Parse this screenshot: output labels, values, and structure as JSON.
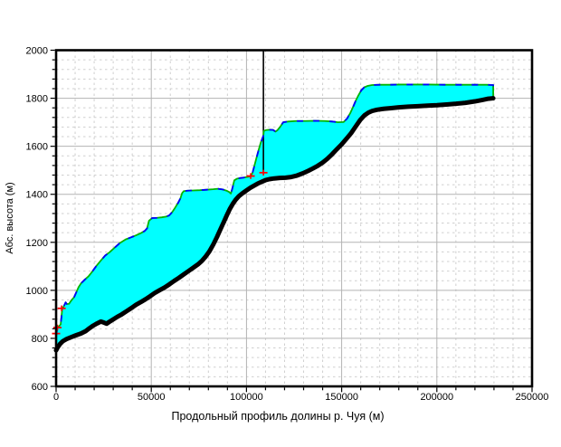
{
  "figure": {
    "background": "#ffffff"
  },
  "chart_data": {
    "type": "area",
    "title": "",
    "xlabel": "Продольный профиль долины р. Чуя (м)",
    "ylabel": "Абс. высота (м)",
    "xlim": [
      0,
      250000
    ],
    "ylim": [
      600,
      2000
    ],
    "x_ticks": [
      0,
      50000,
      100000,
      150000,
      200000,
      250000
    ],
    "y_ticks": [
      600,
      800,
      1000,
      1200,
      1400,
      1600,
      1800,
      2000
    ],
    "x_minor_step": 10000,
    "y_minor_step": 40,
    "grid": {
      "major_style": "solid",
      "minor_style": "dashed",
      "legend": "none"
    },
    "colors": {
      "fill": "#00ffff",
      "lower_bold_line": "#000000",
      "upper_line_green": "#00b400",
      "upper_line_blue_dashed": "#0000ff",
      "markers": "#ff0000",
      "grid_major": "#b3b3b3",
      "grid_minor": "#cfcfcf",
      "frame": "#000000"
    },
    "series": [
      {
        "name": "lower-bold-profile",
        "style": "thick-black-solid",
        "points": [
          [
            0,
            750
          ],
          [
            800,
            762
          ],
          [
            2000,
            776
          ],
          [
            3500,
            788
          ],
          [
            5500,
            797
          ],
          [
            8000,
            805
          ],
          [
            10500,
            813
          ],
          [
            13000,
            820
          ],
          [
            15500,
            830
          ],
          [
            17500,
            842
          ],
          [
            19500,
            853
          ],
          [
            21500,
            862
          ],
          [
            23500,
            870
          ],
          [
            25000,
            866
          ],
          [
            26500,
            861
          ],
          [
            28000,
            869
          ],
          [
            30000,
            879
          ],
          [
            32000,
            889
          ],
          [
            34500,
            900
          ],
          [
            37000,
            913
          ],
          [
            39500,
            926
          ],
          [
            42000,
            940
          ],
          [
            44500,
            951
          ],
          [
            47000,
            963
          ],
          [
            49500,
            976
          ],
          [
            52000,
            990
          ],
          [
            54500,
            1001
          ],
          [
            57000,
            1012
          ],
          [
            59500,
            1025
          ],
          [
            62000,
            1039
          ],
          [
            64500,
            1052
          ],
          [
            67000,
            1066
          ],
          [
            69500,
            1080
          ],
          [
            72000,
            1094
          ],
          [
            74500,
            1108
          ],
          [
            76500,
            1122
          ],
          [
            78500,
            1140
          ],
          [
            80500,
            1162
          ],
          [
            82500,
            1190
          ],
          [
            84500,
            1222
          ],
          [
            86200,
            1252
          ],
          [
            88000,
            1283
          ],
          [
            89700,
            1313
          ],
          [
            91200,
            1338
          ],
          [
            92800,
            1360
          ],
          [
            94300,
            1377
          ],
          [
            96000,
            1392
          ],
          [
            98000,
            1405
          ],
          [
            100000,
            1416
          ],
          [
            102000,
            1427
          ],
          [
            104000,
            1436
          ],
          [
            106000,
            1445
          ],
          [
            108000,
            1452
          ],
          [
            110000,
            1459
          ],
          [
            112000,
            1463
          ],
          [
            114500,
            1466
          ],
          [
            117500,
            1468
          ],
          [
            120500,
            1469
          ],
          [
            123500,
            1472
          ],
          [
            126500,
            1478
          ],
          [
            129500,
            1487
          ],
          [
            132500,
            1498
          ],
          [
            135000,
            1508
          ],
          [
            137500,
            1519
          ],
          [
            140000,
            1532
          ],
          [
            142500,
            1548
          ],
          [
            145000,
            1567
          ],
          [
            147500,
            1588
          ],
          [
            150000,
            1608
          ],
          [
            152500,
            1631
          ],
          [
            155000,
            1655
          ],
          [
            157500,
            1684
          ],
          [
            159800,
            1710
          ],
          [
            162000,
            1729
          ],
          [
            164000,
            1740
          ],
          [
            166000,
            1747
          ],
          [
            168500,
            1752
          ],
          [
            172000,
            1756
          ],
          [
            176000,
            1759
          ],
          [
            180000,
            1762
          ],
          [
            185000,
            1765
          ],
          [
            190000,
            1767
          ],
          [
            195000,
            1769
          ],
          [
            200000,
            1771
          ],
          [
            205000,
            1774
          ],
          [
            210000,
            1777
          ],
          [
            215000,
            1781
          ],
          [
            220000,
            1787
          ],
          [
            224000,
            1793
          ],
          [
            227000,
            1798
          ],
          [
            229600,
            1800
          ]
        ]
      },
      {
        "name": "upper-boundary",
        "style": "green-solid-plus-blue-dashed",
        "points": [
          [
            0,
            808
          ],
          [
            600,
            843
          ],
          [
            1500,
            850
          ],
          [
            2400,
            858
          ],
          [
            2900,
            895
          ],
          [
            3200,
            922
          ],
          [
            4200,
            936
          ],
          [
            5000,
            950
          ],
          [
            5600,
            943
          ],
          [
            6800,
            944
          ],
          [
            8000,
            958
          ],
          [
            9500,
            972
          ],
          [
            10800,
            995
          ],
          [
            11800,
            1013
          ],
          [
            13200,
            1030
          ],
          [
            15000,
            1044
          ],
          [
            17000,
            1058
          ],
          [
            19000,
            1078
          ],
          [
            21000,
            1100
          ],
          [
            23500,
            1124
          ],
          [
            25800,
            1145
          ],
          [
            28000,
            1158
          ],
          [
            30500,
            1176
          ],
          [
            33500,
            1197
          ],
          [
            36500,
            1212
          ],
          [
            39500,
            1221
          ],
          [
            42000,
            1229
          ],
          [
            44500,
            1238
          ],
          [
            46500,
            1247
          ],
          [
            47800,
            1258
          ],
          [
            48800,
            1290
          ],
          [
            50500,
            1301
          ],
          [
            53000,
            1302
          ],
          [
            55500,
            1304
          ],
          [
            57800,
            1307
          ],
          [
            59400,
            1312
          ],
          [
            61000,
            1326
          ],
          [
            62500,
            1344
          ],
          [
            64000,
            1363
          ],
          [
            65300,
            1383
          ],
          [
            66200,
            1405
          ],
          [
            67000,
            1413
          ],
          [
            69000,
            1415
          ],
          [
            72000,
            1416
          ],
          [
            75500,
            1417
          ],
          [
            79000,
            1419
          ],
          [
            82500,
            1421
          ],
          [
            85000,
            1423
          ],
          [
            87500,
            1420
          ],
          [
            89500,
            1415
          ],
          [
            91000,
            1409
          ],
          [
            91800,
            1403
          ],
          [
            92600,
            1425
          ],
          [
            93600,
            1458
          ],
          [
            95000,
            1465
          ],
          [
            97000,
            1468
          ],
          [
            99000,
            1470
          ],
          [
            101000,
            1473
          ],
          [
            102200,
            1476
          ],
          [
            103200,
            1490
          ],
          [
            104200,
            1520
          ],
          [
            105200,
            1550
          ],
          [
            106400,
            1585
          ],
          [
            107500,
            1615
          ],
          [
            108500,
            1636
          ],
          [
            108900,
            1645
          ],
          [
            109100,
            1663
          ],
          [
            110000,
            1667
          ],
          [
            112000,
            1669
          ],
          [
            114000,
            1668
          ],
          [
            115200,
            1661
          ],
          [
            116300,
            1667
          ],
          [
            117800,
            1682
          ],
          [
            119300,
            1700
          ],
          [
            122000,
            1703
          ],
          [
            126000,
            1705
          ],
          [
            131000,
            1705
          ],
          [
            136000,
            1706
          ],
          [
            141000,
            1705
          ],
          [
            145000,
            1703
          ],
          [
            148000,
            1700
          ],
          [
            151000,
            1701
          ],
          [
            152800,
            1715
          ],
          [
            154500,
            1738
          ],
          [
            155900,
            1762
          ],
          [
            157300,
            1788
          ],
          [
            158800,
            1812
          ],
          [
            160300,
            1833
          ],
          [
            161800,
            1845
          ],
          [
            163500,
            1851
          ],
          [
            166000,
            1855
          ],
          [
            170000,
            1856
          ],
          [
            175000,
            1856
          ],
          [
            181000,
            1857
          ],
          [
            188000,
            1857
          ],
          [
            196000,
            1857
          ],
          [
            204000,
            1856
          ],
          [
            212000,
            1856
          ],
          [
            220000,
            1856
          ],
          [
            226000,
            1856
          ],
          [
            229600,
            1855
          ]
        ]
      }
    ],
    "vertical_line": {
      "x": 108900,
      "y_bottom": 1490,
      "y_top": 2000
    },
    "red_markers": [
      [
        0,
        820
      ],
      [
        700,
        845
      ],
      [
        2900,
        925
      ],
      [
        102200,
        1476
      ],
      [
        108900,
        1490
      ]
    ]
  }
}
